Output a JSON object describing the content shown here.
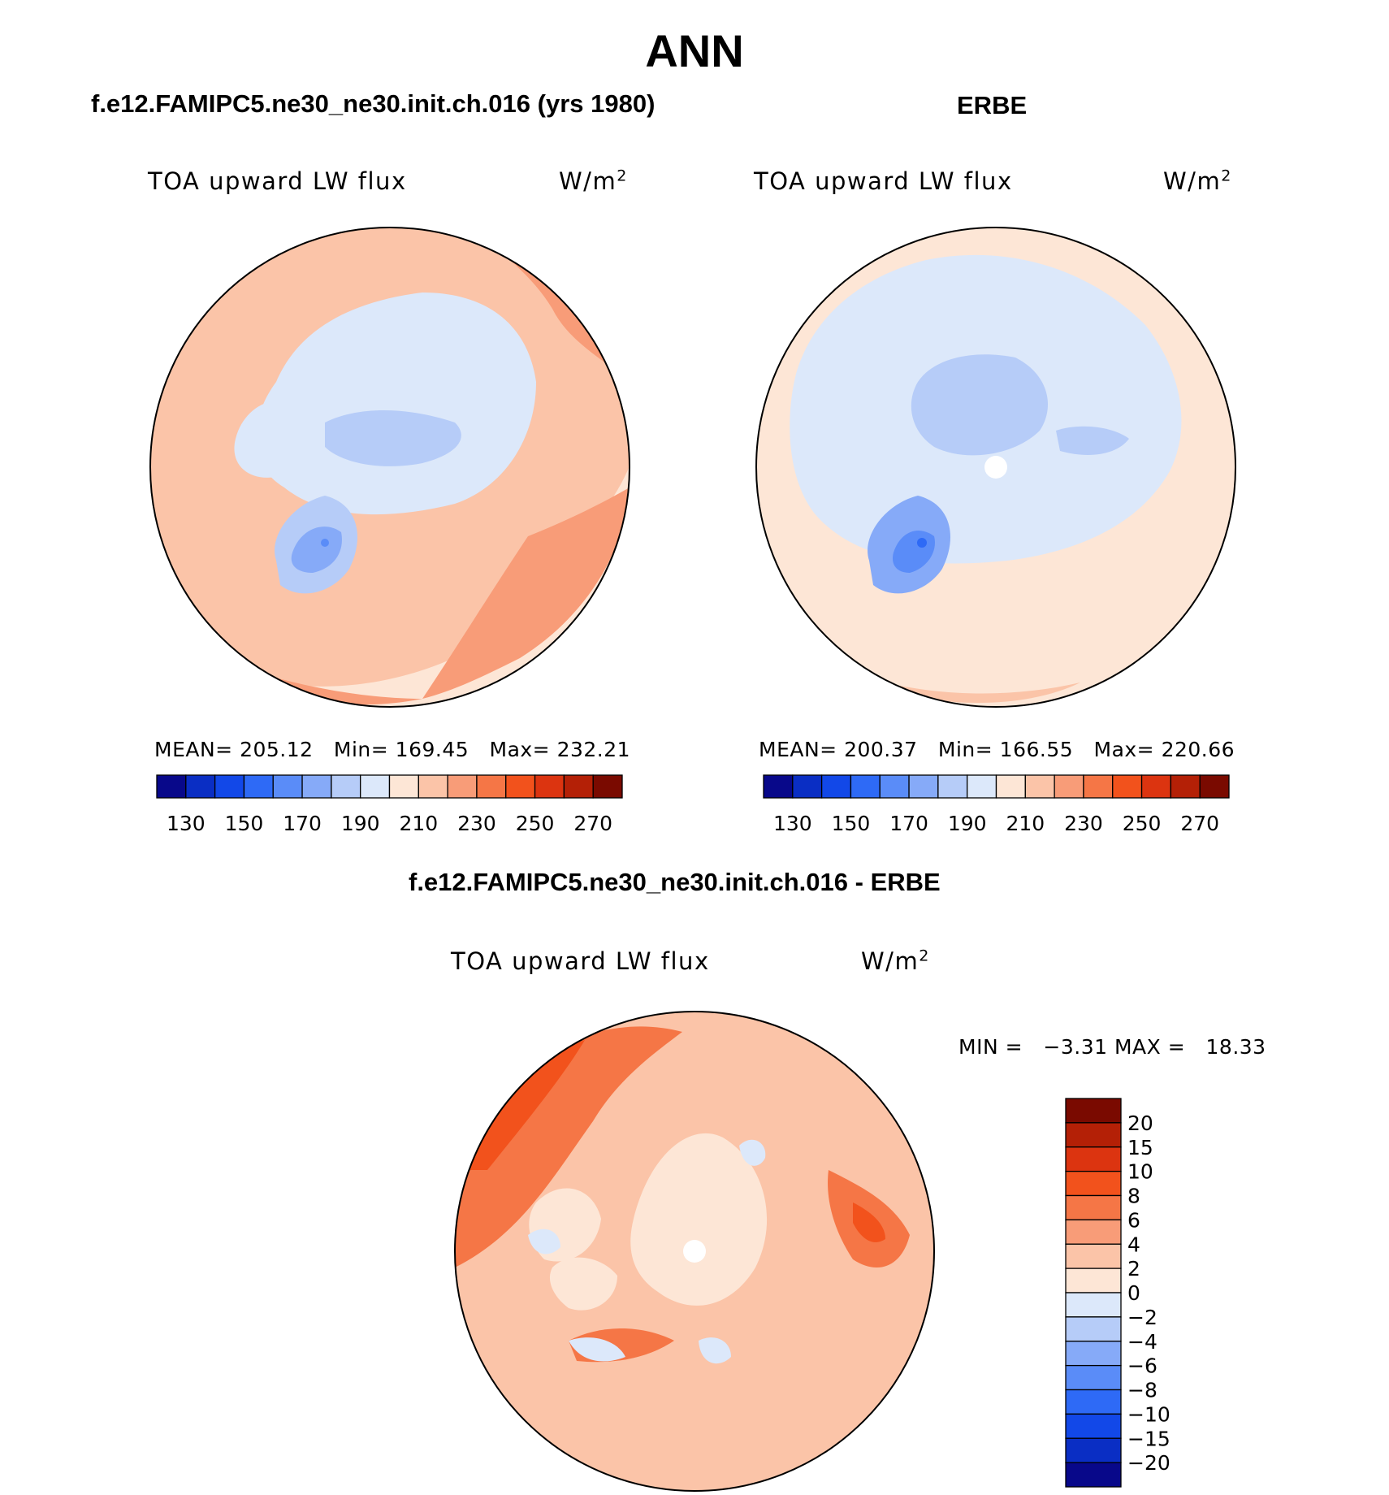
{
  "main_title": "ANN",
  "panel_top_left": {
    "case": "f.e12.FAMIPC5.ne30_ne30.init.ch.016 (yrs 1980)",
    "variable": "TOA upward LW flux",
    "units_base": "W/m",
    "units_exp": "2",
    "mean_label": "MEAN=",
    "mean": "205.12",
    "min_label": "Min=",
    "min": "169.45",
    "max_label": "Max=",
    "max": "232.21"
  },
  "panel_top_right": {
    "case": "ERBE",
    "variable": "TOA upward LW flux",
    "units_base": "W/m",
    "units_exp": "2",
    "mean_label": "MEAN=",
    "mean": "200.37",
    "min_label": "Min=",
    "min": "166.55",
    "max_label": "Max=",
    "max": "220.66"
  },
  "panel_diff": {
    "case": "f.e12.FAMIPC5.ne30_ne30.init.ch.016 - ERBE",
    "variable": "TOA upward LW flux",
    "units_base": "W/m",
    "units_exp": "2",
    "min_label": "MIN =",
    "min": "−3.31",
    "max_label": "MAX =",
    "max": "18.33"
  },
  "colorbar_abs": {
    "colors": [
      "#08088a",
      "#0a2ec4",
      "#1248e8",
      "#2e6af6",
      "#5a8cf8",
      "#86aaf8",
      "#b6ccf8",
      "#dce8fa",
      "#fde6d6",
      "#fbc4a8",
      "#f89c78",
      "#f57646",
      "#f2521c",
      "#dc3410",
      "#b42006",
      "#7a0a00"
    ],
    "tick_labels": [
      "130",
      "150",
      "170",
      "190",
      "210",
      "230",
      "250",
      "270"
    ]
  },
  "colorbar_diff": {
    "colors": [
      "#7a0a00",
      "#b42006",
      "#dc3410",
      "#f2521c",
      "#f57646",
      "#f89c78",
      "#fbc4a8",
      "#fde6d6",
      "#dce8fa",
      "#b6ccf8",
      "#86aaf8",
      "#5a8cf8",
      "#2e6af6",
      "#1248e8",
      "#0a2ec4",
      "#08088a"
    ],
    "tick_labels": [
      "20",
      "15",
      "10",
      "8",
      "6",
      "4",
      "2",
      "0",
      "−2",
      "−4",
      "−6",
      "−8",
      "−10",
      "−15",
      "−20"
    ]
  }
}
